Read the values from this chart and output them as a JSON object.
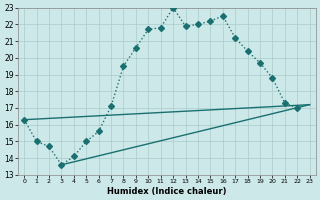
{
  "xlabel": "Humidex (Indice chaleur)",
  "xlim": [
    -0.5,
    23.5
  ],
  "ylim": [
    13,
    23
  ],
  "xticks": [
    0,
    1,
    2,
    3,
    4,
    5,
    6,
    7,
    8,
    9,
    10,
    11,
    12,
    13,
    14,
    15,
    16,
    17,
    18,
    19,
    20,
    21,
    22,
    23
  ],
  "yticks": [
    13,
    14,
    15,
    16,
    17,
    18,
    19,
    20,
    21,
    22,
    23
  ],
  "background_color": "#cce8e8",
  "grid_color": "#aacccc",
  "line_color": "#1a7070",
  "line1_x": [
    0,
    1,
    2,
    3,
    4,
    5,
    6,
    7,
    8,
    9,
    10,
    11,
    12,
    13,
    14,
    15,
    16,
    17,
    18,
    19,
    20,
    21,
    22
  ],
  "line1_y": [
    16.3,
    15.0,
    14.7,
    13.6,
    14.1,
    15.0,
    15.6,
    17.1,
    19.5,
    20.6,
    21.7,
    21.8,
    23.0,
    21.9,
    22.0,
    22.2,
    22.5,
    21.2,
    20.4,
    19.7,
    18.8,
    17.3,
    17.0
  ],
  "line2_x": [
    0,
    23
  ],
  "line2_y": [
    16.3,
    17.2
  ],
  "line3_x": [
    3,
    23
  ],
  "line3_y": [
    13.6,
    17.2
  ],
  "markersize": 3,
  "linewidth": 1.0
}
